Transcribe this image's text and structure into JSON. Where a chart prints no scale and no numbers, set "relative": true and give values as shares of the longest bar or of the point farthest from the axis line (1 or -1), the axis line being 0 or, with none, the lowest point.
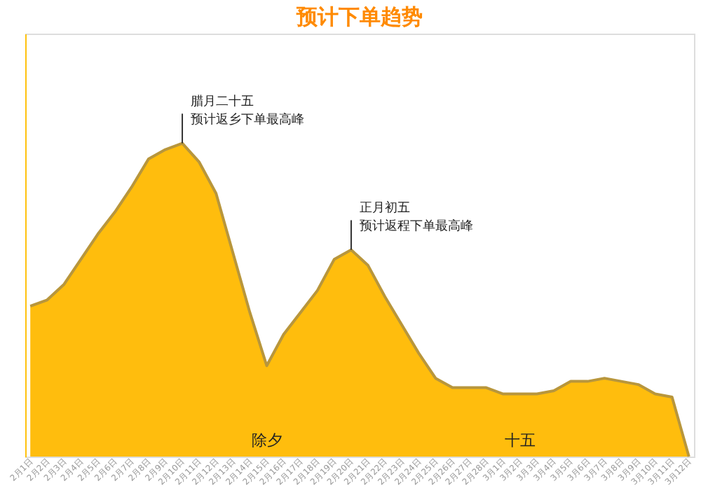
{
  "chart_data": {
    "type": "area",
    "title": "预计下单趋势",
    "relative": true,
    "categories": [
      "2月1日",
      "2月2日",
      "2月3日",
      "2月4日",
      "2月5日",
      "2月6日",
      "2月7日",
      "2月8日",
      "2月9日",
      "2月10日",
      "2月11日",
      "2月12日",
      "2月13日",
      "2月14日",
      "2月15日",
      "2月16日",
      "2月17日",
      "2月18日",
      "2月19日",
      "2月20日",
      "2月21日",
      "2月22日",
      "2月23日",
      "2月24日",
      "2月25日",
      "2月26日",
      "2月27日",
      "2月28日",
      "3月1日",
      "3月2日",
      "3月3日",
      "3月4日",
      "3月5日",
      "3月6日",
      "3月7日",
      "3月8日",
      "3月9日",
      "3月10日",
      "3月11日",
      "3月12日"
    ],
    "series": [
      {
        "color": "#ffb900",
        "values": [
          0.48,
          0.5,
          0.55,
          0.63,
          0.71,
          0.78,
          0.86,
          0.95,
          0.98,
          1,
          0.94,
          0.84,
          0.65,
          0.46,
          0.29,
          0.39,
          0.46,
          0.53,
          0.63,
          0.66,
          0.61,
          0.51,
          0.42,
          0.33,
          0.25,
          0.22,
          0.22,
          0.22,
          0.2,
          0.2,
          0.2,
          0.21,
          0.24,
          0.24,
          0.25,
          0.24,
          0.23,
          0.2,
          0.19,
          0
        ]
      }
    ],
    "annotations": [
      "腊月二十五",
      "预计返乡下单最高峰",
      "正月初五",
      "预计返程下单最高峰",
      "除夕",
      "十五"
    ]
  }
}
